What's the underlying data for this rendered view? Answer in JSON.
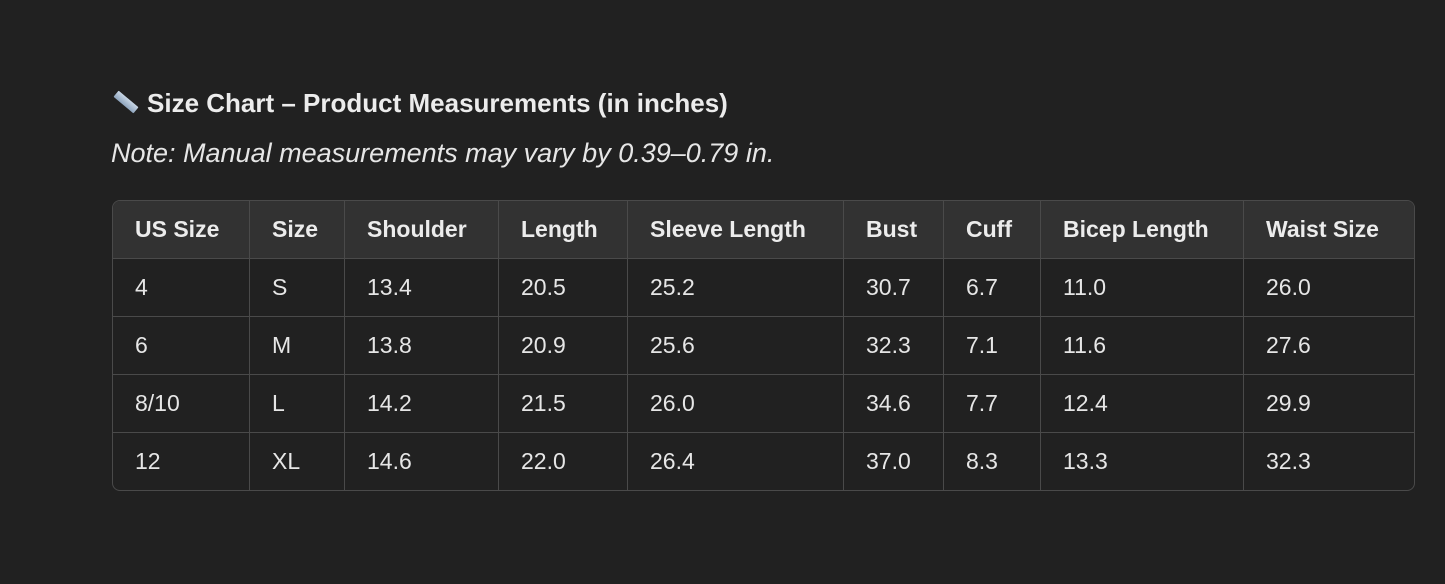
{
  "title": "Size Chart – Product Measurements (in inches)",
  "title_icon": "ruler-icon",
  "note": "Note: Manual measurements may vary by 0.39–0.79 in.",
  "table": {
    "headers": [
      "US Size",
      "Size",
      "Shoulder",
      "Length",
      "Sleeve Length",
      "Bust",
      "Cuff",
      "Bicep Length",
      "Waist Size"
    ],
    "rows": [
      [
        "4",
        "S",
        "13.4",
        "20.5",
        "25.2",
        "30.7",
        "6.7",
        "11.0",
        "26.0"
      ],
      [
        "6",
        "M",
        "13.8",
        "20.9",
        "25.6",
        "32.3",
        "7.1",
        "11.6",
        "27.6"
      ],
      [
        "8/10",
        "L",
        "14.2",
        "21.5",
        "26.0",
        "34.6",
        "7.7",
        "12.4",
        "29.9"
      ],
      [
        "12",
        "XL",
        "14.6",
        "22.0",
        "26.4",
        "37.0",
        "8.3",
        "13.3",
        "32.3"
      ]
    ]
  }
}
